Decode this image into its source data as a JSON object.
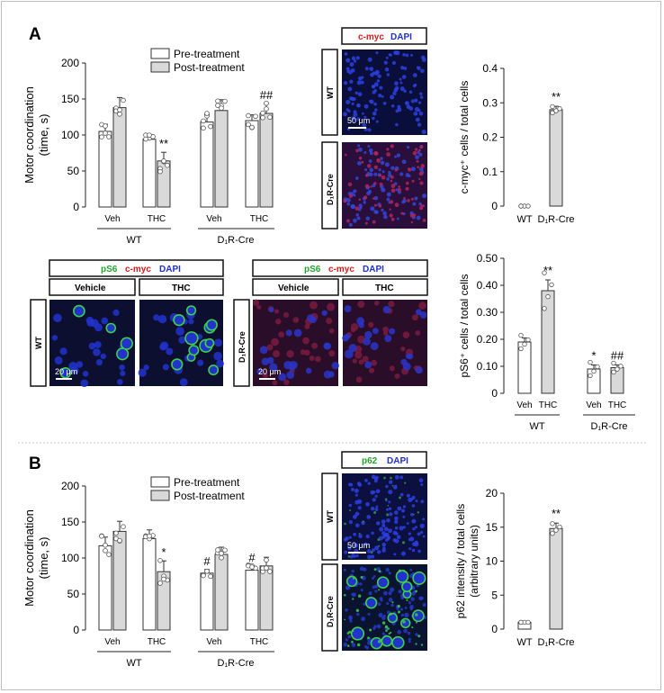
{
  "panel_A_label": "A",
  "panel_B_label": "B",
  "legend": {
    "pre": "Pre-treatment",
    "post": "Post-treatment"
  },
  "stain_labels": {
    "cmyc": "c-myc",
    "dapi": "DAPI",
    "ps6": "pS6",
    "p62": "p62",
    "vehicle": "Vehicle",
    "thc": "THC",
    "wt": "WT",
    "d1r_cre": "D₁R-Cre",
    "scale_50": "50 μm",
    "scale_20": "20 μm"
  },
  "colors": {
    "pre_bar": "#ffffff",
    "post_bar": "#d9d9d9",
    "green": "#22a52e",
    "red": "#d21c1c",
    "blue": "#1f2fd0"
  },
  "chart_data": [
    {
      "id": "A_motor",
      "type": "bar",
      "ylabel_line1": "Motor coordination",
      "ylabel_line2": "(time, s)",
      "ylim": [
        0,
        200
      ],
      "yticks": [
        0,
        50,
        100,
        150,
        200
      ],
      "groups": [
        {
          "label": "WT",
          "categories": [
            "Veh",
            "THC"
          ]
        },
        {
          "label": "D₁R-Cre",
          "categories": [
            "Veh",
            "THC"
          ]
        }
      ],
      "series": [
        {
          "name": "Pre-treatment",
          "values": [
            105,
            94,
            118,
            120
          ],
          "err": [
            10,
            6,
            10,
            8
          ]
        },
        {
          "name": "Post-treatment",
          "values": [
            138,
            64,
            134,
            130
          ],
          "err": [
            14,
            12,
            15,
            14
          ]
        }
      ],
      "annotations": [
        "",
        "**",
        "",
        "##"
      ]
    },
    {
      "id": "A_cmyc",
      "type": "bar",
      "ylabel": "c-myc⁺ cells / total cells",
      "ylim": [
        0,
        0.4
      ],
      "yticks": [
        "0",
        "0.1",
        "0.2",
        "0.3",
        "0.4"
      ],
      "categories": [
        "WT",
        "D₁R-Cre"
      ],
      "values": [
        0.0,
        0.28
      ],
      "err": [
        0,
        0.01
      ],
      "annotations": [
        "",
        "**"
      ]
    },
    {
      "id": "A_ps6",
      "type": "bar",
      "ylabel": "pS6⁺ cells / total cells",
      "ylim": [
        0,
        0.5
      ],
      "yticks": [
        "0",
        "0.10",
        "0.20",
        "0.30",
        "0.40",
        "0.50"
      ],
      "groups": [
        {
          "label": "WT",
          "categories": [
            "Veh",
            "THC"
          ]
        },
        {
          "label": "D₁R-Cre",
          "categories": [
            "Veh",
            "THC"
          ]
        }
      ],
      "values": [
        0.19,
        0.38,
        0.09,
        0.095
      ],
      "err": [
        0.015,
        0.04,
        0.015,
        0.01
      ],
      "annotations": [
        "",
        "**",
        "*",
        "##"
      ]
    },
    {
      "id": "B_motor",
      "type": "bar",
      "ylabel_line1": "Motor coordination",
      "ylabel_line2": "(time, s)",
      "ylim": [
        0,
        200
      ],
      "yticks": [
        0,
        50,
        100,
        150,
        200
      ],
      "groups": [
        {
          "label": "WT",
          "categories": [
            "Veh",
            "THC"
          ]
        },
        {
          "label": "D₁R-Cre",
          "categories": [
            "Veh",
            "THC"
          ]
        }
      ],
      "series": [
        {
          "name": "Pre-treatment",
          "values": [
            117,
            127,
            79,
            83
          ],
          "err": [
            12,
            12,
            5,
            6
          ]
        },
        {
          "name": "Post-treatment",
          "values": [
            137,
            81,
            105,
            89
          ],
          "err": [
            14,
            15,
            10,
            12
          ]
        }
      ],
      "pre_annotations": [
        "",
        "",
        "#",
        "#"
      ],
      "post_annotations": [
        "",
        "*",
        "",
        ""
      ]
    },
    {
      "id": "B_p62",
      "type": "bar",
      "ylabel_line1": "p62 intensity / total cells",
      "ylabel_line2": "(arbitrary units)",
      "ylim": [
        0,
        20
      ],
      "yticks": [
        0,
        5,
        10,
        15,
        20
      ],
      "categories": [
        "WT",
        "D₁R-Cre"
      ],
      "values": [
        1,
        14.8
      ],
      "err": [
        0,
        0.8
      ],
      "annotations": [
        "",
        "**"
      ]
    }
  ]
}
